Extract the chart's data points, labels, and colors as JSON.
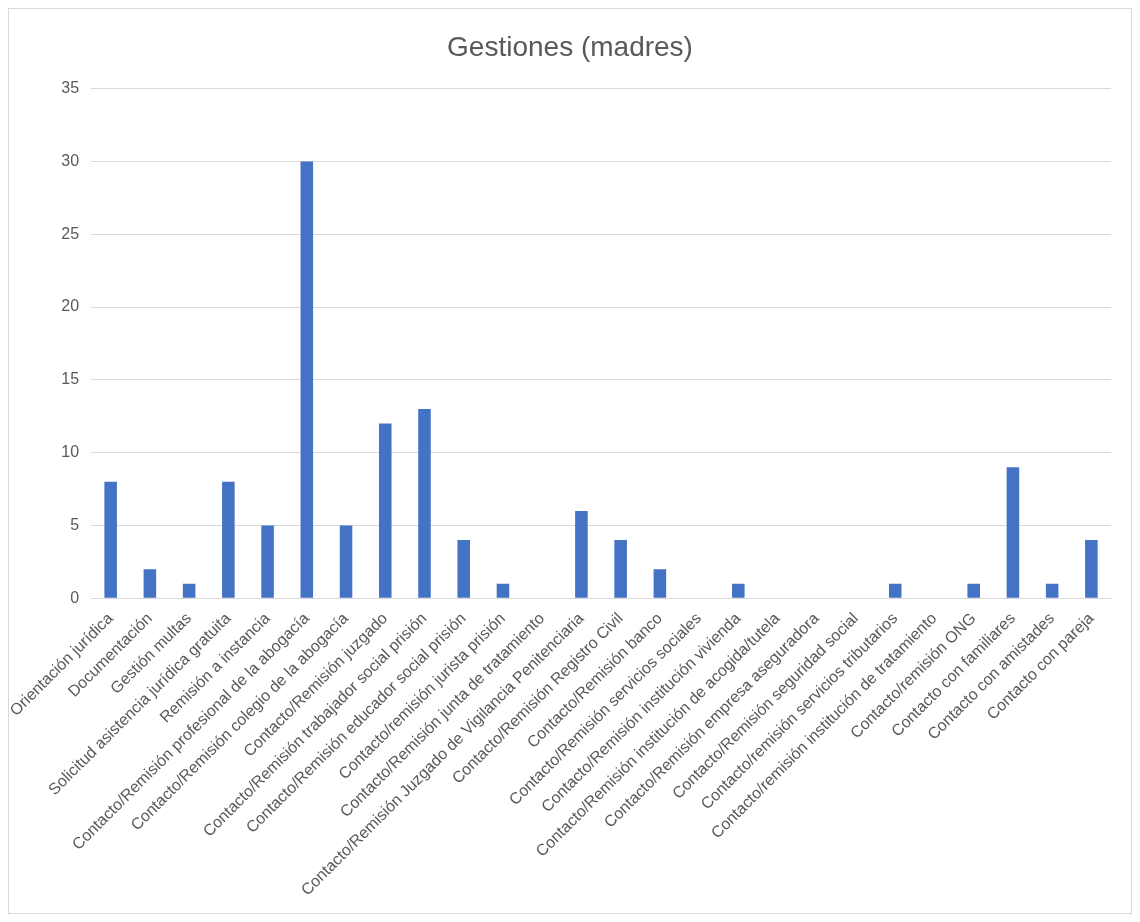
{
  "chart_data": {
    "type": "bar",
    "title": "Gestiones (madres)",
    "categories": [
      "Orientación jurídica",
      "Documentación",
      "Gestión multas",
      "Solicitud asistencia jurídica gratuita",
      "Remisión a instancia",
      "Contacto/Remisión profesional de la abogacía",
      "Contacto/Remisión colegio de la abogacía",
      "Contacto/Remisión juzgado",
      "Contacto/Remisión trabajador social prisión",
      "Contacto/Remisión educador social prisión",
      "Contacto/remisión jurista prisión",
      "Contacto/Remisión junta de tratamiento",
      "Contacto/Remisión Juzgado de Vigilancia Penitenciaria",
      "Contacto/Remisión Registro Civil",
      "Contacto/Remisión banco",
      "Contacto/Remisión servicios sociales",
      "Contacto/Remisión institución vivienda",
      "Contacto/Remisión institución de acogida/tutela",
      "Contacto/Remisión empresa aseguradora",
      "Contacto/Remisión seguridad social",
      "Contacto/remisión servicios tributarios",
      "Contacto/remisión institución de tratamiento",
      "Contacto/remisión ONG",
      "Contacto con familiares",
      "Contacto con amistades",
      "Contacto con pareja"
    ],
    "values": [
      8,
      2,
      1,
      8,
      5,
      30,
      5,
      12,
      13,
      4,
      1,
      0,
      6,
      4,
      2,
      0,
      1,
      0,
      0,
      0,
      1,
      0,
      1,
      9,
      1,
      4
    ],
    "color": "#4472c4",
    "ylim": [
      0,
      35
    ],
    "yticks": [
      0,
      5,
      10,
      15,
      20,
      25,
      30,
      35
    ],
    "grid": "y",
    "legend": false
  }
}
